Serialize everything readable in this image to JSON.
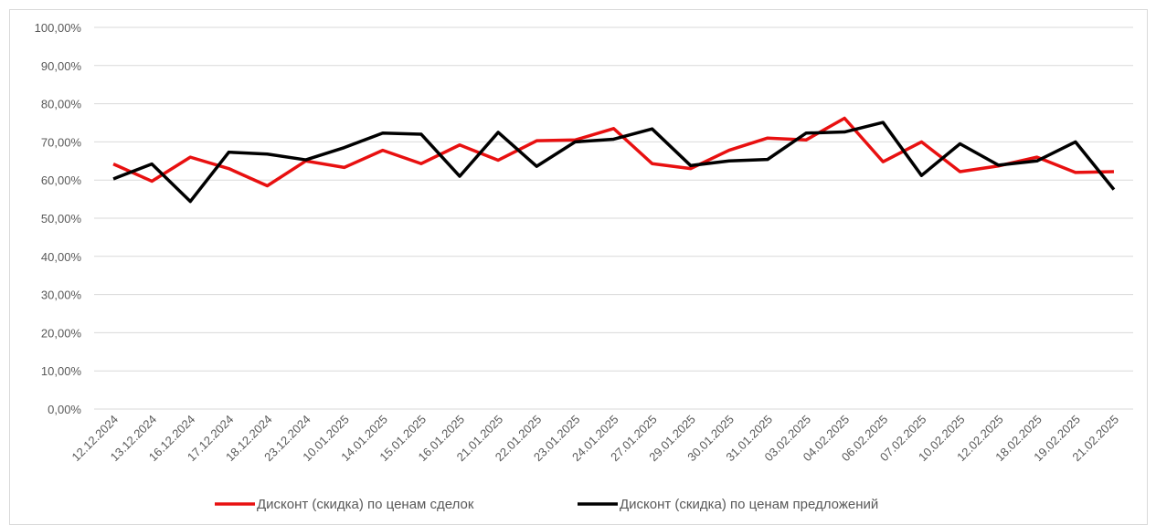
{
  "chart_data": {
    "type": "line",
    "categories": [
      "12.12.2024",
      "13.12.2024",
      "16.12.2024",
      "17.12.2024",
      "18.12.2024",
      "23.12.2024",
      "10.01.2025",
      "14.01.2025",
      "15.01.2025",
      "16.01.2025",
      "21.01.2025",
      "22.01.2025",
      "23.01.2025",
      "24.01.2025",
      "27.01.2025",
      "29.01.2025",
      "30.01.2025",
      "31.01.2025",
      "03.02.2025",
      "04.02.2025",
      "06.02.2025",
      "07.02.2025",
      "10.02.2025",
      "12.02.2025",
      "18.02.2025",
      "19.02.2025",
      "21.02.2025"
    ],
    "series": [
      {
        "name": "Дисконт (скидка) по ценам сделок",
        "color": "#e81010",
        "values": [
          64.2,
          59.7,
          66.0,
          63.0,
          58.5,
          65.0,
          63.3,
          67.8,
          64.3,
          69.2,
          65.2,
          70.3,
          70.5,
          73.5,
          64.3,
          63.0,
          67.8,
          71.0,
          70.5,
          76.2,
          64.8,
          70.0,
          62.2,
          63.7,
          66.0,
          62.0,
          62.2
        ]
      },
      {
        "name": "Дисконт (скидка) по ценам предложений",
        "color": "#000000",
        "values": [
          60.3,
          64.2,
          54.4,
          67.3,
          66.8,
          65.3,
          68.5,
          72.3,
          72.0,
          61.0,
          72.5,
          63.6,
          70.0,
          70.7,
          73.4,
          63.8,
          65.0,
          65.4,
          72.3,
          72.6,
          75.1,
          61.2,
          69.5,
          63.9,
          65.0,
          70.0,
          57.5
        ]
      }
    ],
    "ylim": [
      0,
      100
    ],
    "yticks": [
      {
        "value": 0,
        "label": "0,00%"
      },
      {
        "value": 10,
        "label": "10,00%"
      },
      {
        "value": 20,
        "label": "20,00%"
      },
      {
        "value": 30,
        "label": "30,00%"
      },
      {
        "value": 40,
        "label": "40,00%"
      },
      {
        "value": 50,
        "label": "50,00%"
      },
      {
        "value": 60,
        "label": "60,00%"
      },
      {
        "value": 70,
        "label": "70,00%"
      },
      {
        "value": 80,
        "label": "80,00%"
      },
      {
        "value": 90,
        "label": "90,00%"
      },
      {
        "value": 100,
        "label": "100,00%"
      }
    ],
    "grid": true,
    "legend": "bottom"
  }
}
